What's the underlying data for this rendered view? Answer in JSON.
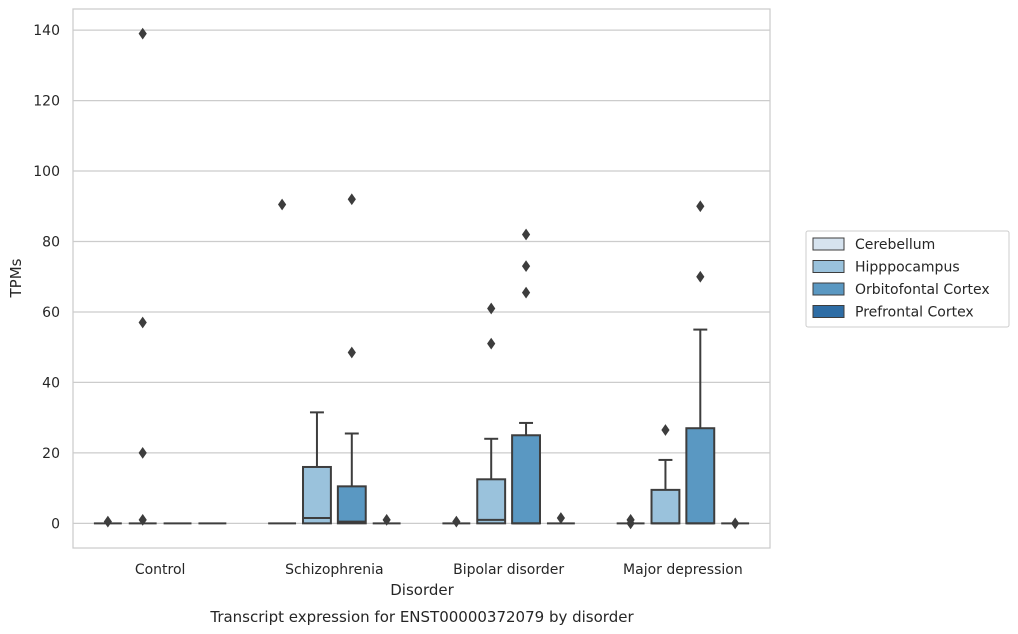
{
  "chart_data": {
    "type": "box",
    "title": "Transcript expression for ENST00000372079 by disorder",
    "xlabel": "Disorder",
    "ylabel": "TPMs",
    "ylim": [
      -7,
      146
    ],
    "yticks": [
      0,
      20,
      40,
      60,
      80,
      100,
      120,
      140
    ],
    "categories": [
      "Control",
      "Schizophrenia",
      "Bipolar disorder",
      "Major depression"
    ],
    "grid": "horizontal",
    "legend_position": "right",
    "series": [
      {
        "name": "Cerebellum",
        "color": "#d6e3ef",
        "boxes": [
          {
            "category": "Control",
            "q1": 0,
            "median": 0,
            "q3": 0,
            "whisker_low": 0,
            "whisker_high": 0,
            "outliers": [
              0.5
            ]
          },
          {
            "category": "Schizophrenia",
            "q1": 0,
            "median": 0,
            "q3": 0,
            "whisker_low": 0,
            "whisker_high": 0,
            "outliers": [
              90.5
            ]
          },
          {
            "category": "Bipolar disorder",
            "q1": 0,
            "median": 0,
            "q3": 0,
            "whisker_low": 0,
            "whisker_high": 0,
            "outliers": [
              0.5
            ]
          },
          {
            "category": "Major depression",
            "q1": 0,
            "median": 0,
            "q3": 0,
            "whisker_low": 0,
            "whisker_high": 0,
            "outliers": [
              0,
              1
            ]
          }
        ]
      },
      {
        "name": "Hipppocampus",
        "color": "#9ac2dc",
        "boxes": [
          {
            "category": "Control",
            "q1": 0,
            "median": 0,
            "q3": 0,
            "whisker_low": 0,
            "whisker_high": 0,
            "outliers": [
              1,
              20,
              57,
              139
            ]
          },
          {
            "category": "Schizophrenia",
            "q1": 0,
            "median": 1.5,
            "q3": 16,
            "whisker_low": 0,
            "whisker_high": 31.5,
            "outliers": []
          },
          {
            "category": "Bipolar disorder",
            "q1": 0,
            "median": 1,
            "q3": 12.5,
            "whisker_low": 0,
            "whisker_high": 24,
            "outliers": [
              51,
              61
            ]
          },
          {
            "category": "Major depression",
            "q1": 0,
            "median": 0,
            "q3": 9.5,
            "whisker_low": 0,
            "whisker_high": 18,
            "outliers": [
              26.5
            ]
          }
        ]
      },
      {
        "name": "Orbitofontal Cortex",
        "color": "#5a98c2",
        "boxes": [
          {
            "category": "Control",
            "q1": 0,
            "median": 0,
            "q3": 0,
            "whisker_low": 0,
            "whisker_high": 0,
            "outliers": []
          },
          {
            "category": "Schizophrenia",
            "q1": 0,
            "median": 0.5,
            "q3": 10.5,
            "whisker_low": 0,
            "whisker_high": 25.5,
            "outliers": [
              48.5,
              92
            ]
          },
          {
            "category": "Bipolar disorder",
            "q1": 0,
            "median": 0,
            "q3": 25,
            "whisker_low": 0,
            "whisker_high": 28.5,
            "outliers": [
              65.5,
              73,
              82
            ]
          },
          {
            "category": "Major depression",
            "q1": 0,
            "median": 0,
            "q3": 27,
            "whisker_low": 0,
            "whisker_high": 55,
            "outliers": [
              70,
              90
            ]
          }
        ]
      },
      {
        "name": "Prefrontal Cortex",
        "color": "#2e6da5",
        "boxes": [
          {
            "category": "Control",
            "q1": 0,
            "median": 0,
            "q3": 0,
            "whisker_low": 0,
            "whisker_high": 0,
            "outliers": []
          },
          {
            "category": "Schizophrenia",
            "q1": 0,
            "median": 0,
            "q3": 0,
            "whisker_low": 0,
            "whisker_high": 0,
            "outliers": [
              1
            ]
          },
          {
            "category": "Bipolar disorder",
            "q1": 0,
            "median": 0,
            "q3": 0,
            "whisker_low": 0,
            "whisker_high": 0,
            "outliers": [
              1.5
            ]
          },
          {
            "category": "Major depression",
            "q1": 0,
            "median": 0,
            "q3": 0,
            "whisker_low": 0,
            "whisker_high": 0,
            "outliers": [
              0
            ]
          }
        ]
      }
    ]
  }
}
